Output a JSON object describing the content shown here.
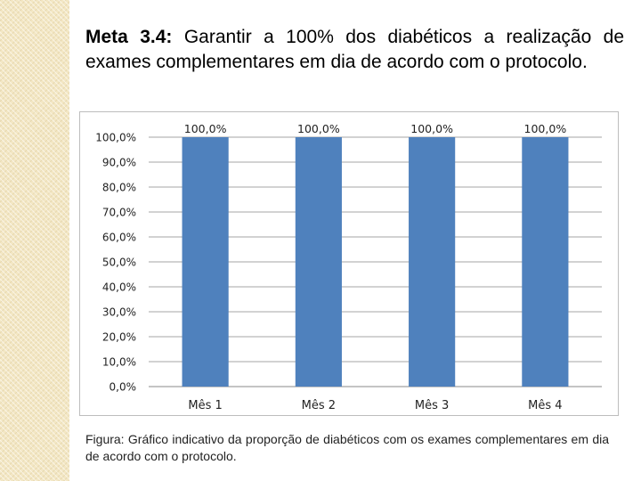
{
  "heading": {
    "lead": "Meta 3.4:",
    "text": " Garantir a 100% dos diabéticos a realização de exames complementares em dia de acordo com o protocolo."
  },
  "caption": "Figura: Gráfico indicativo da proporção de diabéticos com os exames complementares em dia de acordo com o protocolo.",
  "colors": {
    "bar": "#4f81bd",
    "grid": "#888888",
    "axis_text": "#222222",
    "side_strip": "#f3e7c4"
  },
  "chart_data": {
    "type": "bar",
    "categories": [
      "Mês 1",
      "Mês 2",
      "Mês 3",
      "Mês 4"
    ],
    "values": [
      100,
      100,
      100,
      100
    ],
    "data_labels": [
      "100,0%",
      "100,0%",
      "100,0%",
      "100,0%"
    ],
    "y_tick_labels": [
      "0,0%",
      "10,0%",
      "20,0%",
      "30,0%",
      "40,0%",
      "50,0%",
      "60,0%",
      "70,0%",
      "80,0%",
      "90,0%",
      "100,0%"
    ],
    "ylim": [
      0,
      100
    ],
    "grid": true,
    "legend": "none",
    "title": "",
    "xlabel": "",
    "ylabel": ""
  }
}
